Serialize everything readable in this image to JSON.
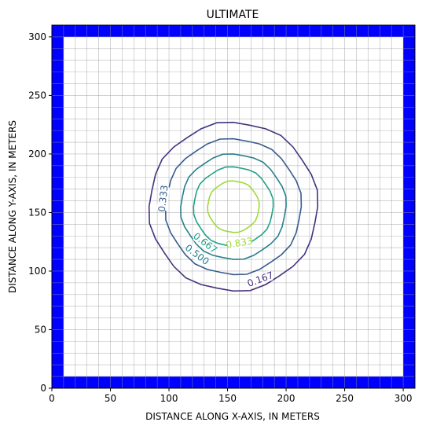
{
  "chart_data": {
    "type": "contour",
    "title": "ULTIMATE",
    "xlabel": "DISTANCE ALONG X-AXIS, IN METERS",
    "ylabel": "DISTANCE ALONG Y-AXIS, IN METERS",
    "xlim": [
      0,
      310
    ],
    "ylim": [
      0,
      310
    ],
    "xticks": [
      0,
      50,
      100,
      150,
      200,
      250,
      300
    ],
    "yticks": [
      0,
      50,
      100,
      150,
      200,
      250,
      300
    ],
    "grid": true,
    "grid_spacing": 10,
    "boundary_color": "#0000ff",
    "boundary_cells": {
      "left": [
        0,
        10
      ],
      "right": [
        300,
        310
      ],
      "bottom": [
        0,
        10
      ],
      "top": [
        300,
        310
      ]
    },
    "contours": [
      {
        "level": 0.167,
        "label": "0.167",
        "color": "#46327e",
        "center": [
          155,
          155
        ],
        "radius": 72,
        "label_pos": [
          178,
          93
        ]
      },
      {
        "level": 0.333,
        "label": "0.333",
        "color": "#365c8d",
        "center": [
          155,
          155
        ],
        "radius": 58,
        "label_pos": [
          95,
          162
        ]
      },
      {
        "level": 0.5,
        "label": "0.500",
        "color": "#277f8e",
        "center": [
          155,
          155
        ],
        "radius": 45,
        "label_pos": [
          124,
          114
        ]
      },
      {
        "level": 0.667,
        "label": "0.667",
        "color": "#1fa187",
        "center": [
          155,
          155
        ],
        "radius": 34,
        "label_pos": [
          131,
          124
        ]
      },
      {
        "level": 0.833,
        "label": "0.833",
        "color": "#9fda3a",
        "center": [
          155,
          155
        ],
        "radius": 22,
        "label_pos": [
          160,
          124
        ]
      }
    ]
  }
}
